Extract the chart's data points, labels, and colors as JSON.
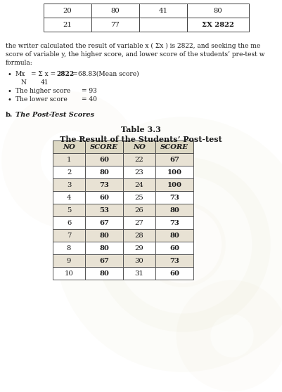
{
  "top_table_rows": [
    [
      "20",
      "80",
      "41",
      "80"
    ],
    [
      "21",
      "77",
      "",
      "ΣX 2822"
    ]
  ],
  "text_lines": [
    "the writer calculated the result of variable x ( Σx ) is 2822, and seeking the me",
    "score of variable y, the higher score, and lower score of the students’ pre-test w",
    "formula:"
  ],
  "headers": [
    "NO",
    "SCORE",
    "NO",
    "SCORE"
  ],
  "rows": [
    [
      "1",
      "60",
      "22",
      "67"
    ],
    [
      "2",
      "80",
      "23",
      "100"
    ],
    [
      "3",
      "73",
      "24",
      "100"
    ],
    [
      "4",
      "60",
      "25",
      "73"
    ],
    [
      "5",
      "53",
      "26",
      "80"
    ],
    [
      "6",
      "67",
      "27",
      "73"
    ],
    [
      "7",
      "80",
      "28",
      "80"
    ],
    [
      "8",
      "80",
      "29",
      "60"
    ],
    [
      "9",
      "67",
      "30",
      "73"
    ],
    [
      "10",
      "80",
      "31",
      "60"
    ]
  ],
  "bg_color": "#ffffff",
  "table_title1": "Table 3.3",
  "table_title2": "The Result of the Students’ Post-test"
}
